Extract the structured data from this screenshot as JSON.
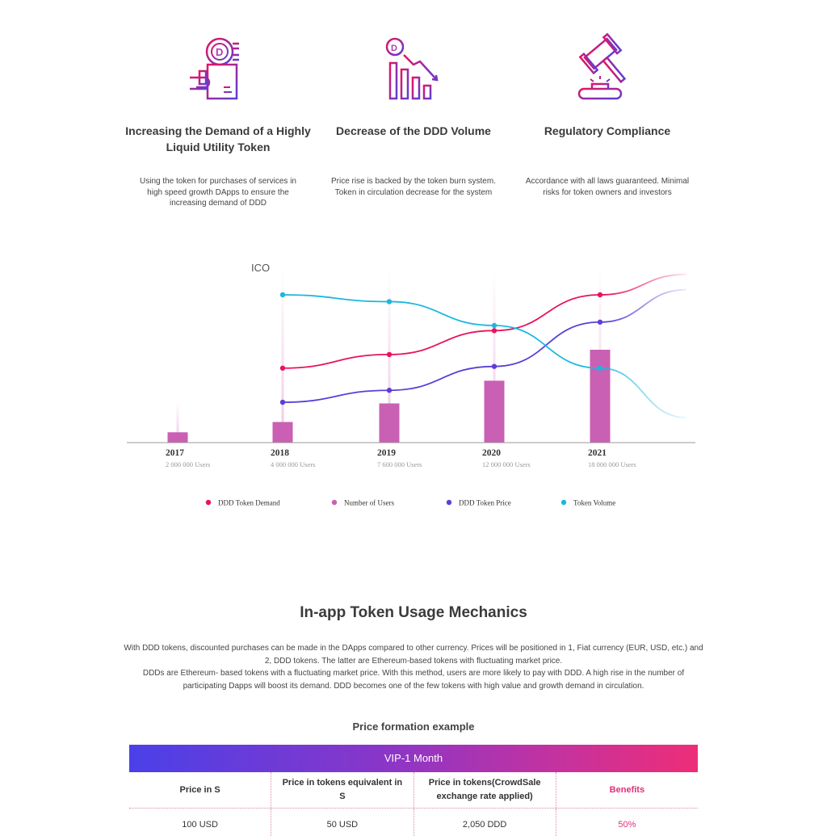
{
  "features": [
    {
      "icon": "token-coins-hand-icon",
      "title": "Increasing the Demand of a Highly Liquid Utility Token",
      "description": "Using the token for purchases of services in high speed growth DApps to ensure the increasing demand of DDD"
    },
    {
      "icon": "declining-bar-chart-icon",
      "title": "Decrease of the DDD Volume",
      "description": "Price rise is backed by the token burn system. Token in circulation decrease for the system"
    },
    {
      "icon": "gavel-icon",
      "title": "Regulatory Compliance",
      "description": "Accordance with all laws guaranteed. Minimal risks for token owners and investors"
    }
  ],
  "chart_data": {
    "type": "bar",
    "annotation": "ICO",
    "categories": [
      "2017",
      "2018",
      "2019",
      "2020",
      "2021"
    ],
    "category_sublabels": [
      "2 000 000 Users",
      "4 000 000 Users",
      "7 600 000 Users",
      "12 000 000 Users",
      "18 000 000 Users"
    ],
    "series": [
      {
        "name": "Number of Users",
        "kind": "bar",
        "color": "#c960b3",
        "values": [
          2000000,
          4000000,
          7600000,
          12000000,
          18000000
        ]
      },
      {
        "name": "DDD Token Demand",
        "kind": "line",
        "color": "#e8125f",
        "values": [
          null,
          0.57,
          0.65,
          0.79,
          1.0
        ]
      },
      {
        "name": "DDD Token Price",
        "kind": "line",
        "color": "#5a3fd9",
        "values": [
          null,
          0.37,
          0.44,
          0.58,
          0.84
        ]
      },
      {
        "name": "Token Volume",
        "kind": "line",
        "color": "#1ab8e0",
        "values": [
          null,
          1.0,
          0.96,
          0.82,
          0.57
        ]
      }
    ],
    "legend_order": [
      "DDD Token Demand",
      "Number of Users",
      "DDD Token Price",
      "Token Volume"
    ],
    "legend_position": "bottom",
    "grid": false
  },
  "mechanics": {
    "title": "In-app Token Usage Mechanics",
    "paragraph1": "With DDD tokens, discounted purchases can be made in the DApps compared to other currency. Prices will be positioned in 1, Fiat currency (EUR, USD, etc.) and 2, DDD tokens. The latter are Ethereum-based tokens with fluctuating market price.",
    "paragraph2": "DDDs are Ethereum- based tokens with a fluctuating market price. With this method, users are more likely to pay with DDD. A high rise in the number of participating Dapps will boost its demand. DDD becomes one of the few tokens with high value and growth demand in circulation."
  },
  "price_table": {
    "title": "Price formation example",
    "plan": "VIP-1 Month",
    "headers": [
      "Price in S",
      "Price in tokens equivalent in S",
      "Price in tokens(CrowdSale exchange rate applied)",
      "Benefits"
    ],
    "rows": [
      [
        "100 USD",
        "50 USD",
        "2,050 DDD",
        "50%"
      ]
    ]
  },
  "colors": {
    "accent_pink": "#e8125f",
    "accent_purple": "#5a3fd9",
    "accent_cyan": "#1ab8e0",
    "bar_magenta": "#c960b3"
  }
}
